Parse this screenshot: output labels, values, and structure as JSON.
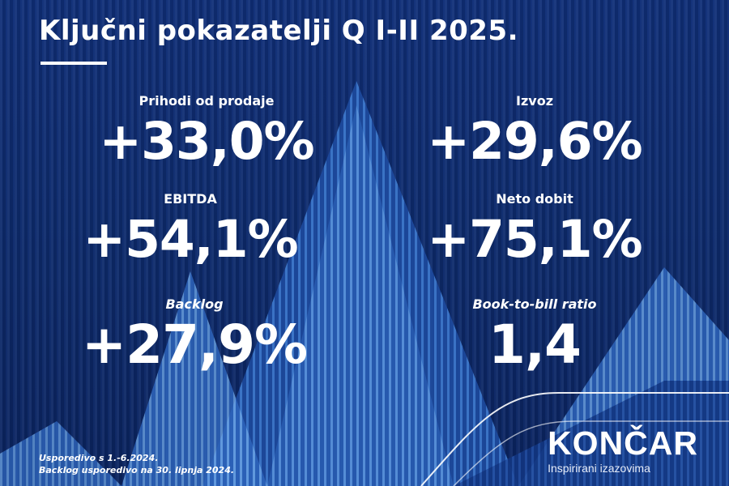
{
  "title": "Ključni pokazatelji Q I-II 2025.",
  "metrics": [
    {
      "label": "Prihodi od prodaje",
      "value": "+33,0%"
    },
    {
      "label": "Izvoz",
      "value": "+29,6%"
    },
    {
      "label": "EBITDA",
      "value": "+54,1%"
    },
    {
      "label": "Neto dobit",
      "value": "+75,1%"
    },
    {
      "label": "Backlog",
      "value": "+27,9%"
    },
    {
      "label": "Book-to-bill ratio",
      "value": "1,4"
    }
  ],
  "footnotes": [
    "Usporedivo s 1.-6.2024.",
    "Backlog usporedivo na 30. lipnja 2024."
  ],
  "logo": {
    "brand": "KONČAR",
    "tagline": "Inspirirani izazovima"
  },
  "colors": {
    "background": "#0d2a6b",
    "arrow_light": "#5b92d6",
    "arrow_dark": "#173d8c",
    "text": "#ffffff"
  }
}
